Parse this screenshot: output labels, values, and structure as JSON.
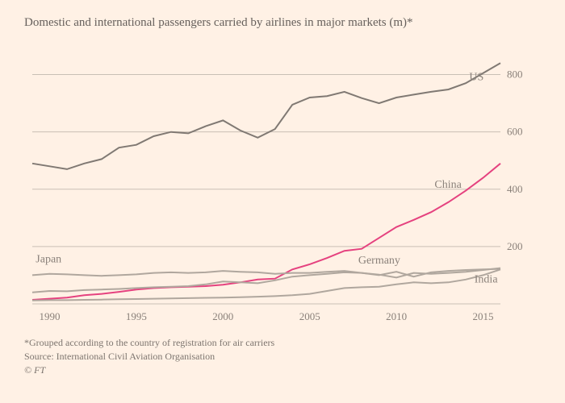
{
  "title": "Domestic and international passengers carried by airlines in major markets (m)*",
  "footnote_line1": "*Grouped according to the country of registration for air carriers",
  "footnote_line2": "Source: International Civil Aviation Organisation",
  "footnote_line3": "© FT",
  "chart": {
    "type": "line",
    "background_color": "#fff1e5",
    "grid_color": "#c9bfb5",
    "xlim": [
      1989,
      2016
    ],
    "ylim": [
      0,
      900
    ],
    "yticks": [
      200,
      400,
      600,
      800
    ],
    "xticks": [
      1990,
      1995,
      2000,
      2005,
      2010,
      2015
    ],
    "title_fontsize": 15,
    "axis_fontsize": 13,
    "label_fontsize": 14,
    "line_width": 2,
    "series": [
      {
        "name": "US",
        "color": "#807973",
        "label_x": 2014.2,
        "label_y": 780,
        "points": [
          [
            1989,
            490
          ],
          [
            1990,
            480
          ],
          [
            1991,
            470
          ],
          [
            1992,
            490
          ],
          [
            1993,
            505
          ],
          [
            1994,
            545
          ],
          [
            1995,
            555
          ],
          [
            1996,
            585
          ],
          [
            1997,
            600
          ],
          [
            1998,
            595
          ],
          [
            1999,
            620
          ],
          [
            2000,
            640
          ],
          [
            2001,
            605
          ],
          [
            2002,
            580
          ],
          [
            2003,
            610
          ],
          [
            2004,
            695
          ],
          [
            2005,
            720
          ],
          [
            2006,
            725
          ],
          [
            2007,
            740
          ],
          [
            2008,
            718
          ],
          [
            2009,
            700
          ],
          [
            2010,
            720
          ],
          [
            2011,
            730
          ],
          [
            2012,
            740
          ],
          [
            2013,
            748
          ],
          [
            2014,
            770
          ],
          [
            2015,
            805
          ],
          [
            2016,
            840
          ]
        ]
      },
      {
        "name": "China",
        "color": "#e5427f",
        "label_x": 2012.2,
        "label_y": 405,
        "points": [
          [
            1989,
            14
          ],
          [
            1990,
            18
          ],
          [
            1991,
            22
          ],
          [
            1992,
            30
          ],
          [
            1993,
            35
          ],
          [
            1994,
            42
          ],
          [
            1995,
            50
          ],
          [
            1996,
            55
          ],
          [
            1997,
            58
          ],
          [
            1998,
            60
          ],
          [
            1999,
            62
          ],
          [
            2000,
            67
          ],
          [
            2001,
            75
          ],
          [
            2002,
            85
          ],
          [
            2003,
            88
          ],
          [
            2004,
            120
          ],
          [
            2005,
            138
          ],
          [
            2006,
            160
          ],
          [
            2007,
            185
          ],
          [
            2008,
            192
          ],
          [
            2009,
            230
          ],
          [
            2010,
            268
          ],
          [
            2011,
            293
          ],
          [
            2012,
            320
          ],
          [
            2013,
            355
          ],
          [
            2014,
            395
          ],
          [
            2015,
            440
          ],
          [
            2016,
            490
          ]
        ]
      },
      {
        "name": "Japan",
        "color": "#b0a79e",
        "label_x": 1989.2,
        "label_y": 145,
        "points": [
          [
            1989,
            100
          ],
          [
            1990,
            105
          ],
          [
            1991,
            103
          ],
          [
            1992,
            100
          ],
          [
            1993,
            98
          ],
          [
            1994,
            100
          ],
          [
            1995,
            103
          ],
          [
            1996,
            108
          ],
          [
            1997,
            110
          ],
          [
            1998,
            108
          ],
          [
            1999,
            110
          ],
          [
            2000,
            115
          ],
          [
            2001,
            112
          ],
          [
            2002,
            110
          ],
          [
            2003,
            105
          ],
          [
            2004,
            108
          ],
          [
            2005,
            108
          ],
          [
            2006,
            112
          ],
          [
            2007,
            115
          ],
          [
            2008,
            108
          ],
          [
            2009,
            100
          ],
          [
            2010,
            112
          ],
          [
            2011,
            95
          ],
          [
            2012,
            110
          ],
          [
            2013,
            115
          ],
          [
            2014,
            118
          ],
          [
            2015,
            120
          ],
          [
            2016,
            122
          ]
        ]
      },
      {
        "name": "Germany",
        "color": "#b0a79e",
        "label_x": 2007.8,
        "label_y": 140,
        "points": [
          [
            1989,
            40
          ],
          [
            1990,
            45
          ],
          [
            1991,
            44
          ],
          [
            1992,
            48
          ],
          [
            1993,
            50
          ],
          [
            1994,
            52
          ],
          [
            1995,
            55
          ],
          [
            1996,
            58
          ],
          [
            1997,
            60
          ],
          [
            1998,
            62
          ],
          [
            1999,
            68
          ],
          [
            2000,
            78
          ],
          [
            2001,
            75
          ],
          [
            2002,
            72
          ],
          [
            2003,
            82
          ],
          [
            2004,
            95
          ],
          [
            2005,
            100
          ],
          [
            2006,
            105
          ],
          [
            2007,
            110
          ],
          [
            2008,
            108
          ],
          [
            2009,
            102
          ],
          [
            2010,
            92
          ],
          [
            2011,
            108
          ],
          [
            2012,
            105
          ],
          [
            2013,
            108
          ],
          [
            2014,
            112
          ],
          [
            2015,
            118
          ],
          [
            2016,
            125
          ]
        ]
      },
      {
        "name": "India",
        "color": "#b0a79e",
        "label_x": 2014.5,
        "label_y": 75,
        "points": [
          [
            1989,
            12
          ],
          [
            1990,
            13
          ],
          [
            1991,
            13
          ],
          [
            1992,
            14
          ],
          [
            1993,
            15
          ],
          [
            1994,
            16
          ],
          [
            1995,
            17
          ],
          [
            1996,
            18
          ],
          [
            1997,
            19
          ],
          [
            1998,
            20
          ],
          [
            1999,
            21
          ],
          [
            2000,
            22
          ],
          [
            2001,
            23
          ],
          [
            2002,
            25
          ],
          [
            2003,
            27
          ],
          [
            2004,
            30
          ],
          [
            2005,
            35
          ],
          [
            2006,
            45
          ],
          [
            2007,
            55
          ],
          [
            2008,
            58
          ],
          [
            2009,
            60
          ],
          [
            2010,
            68
          ],
          [
            2011,
            75
          ],
          [
            2012,
            72
          ],
          [
            2013,
            75
          ],
          [
            2014,
            85
          ],
          [
            2015,
            100
          ],
          [
            2016,
            120
          ]
        ]
      }
    ]
  }
}
